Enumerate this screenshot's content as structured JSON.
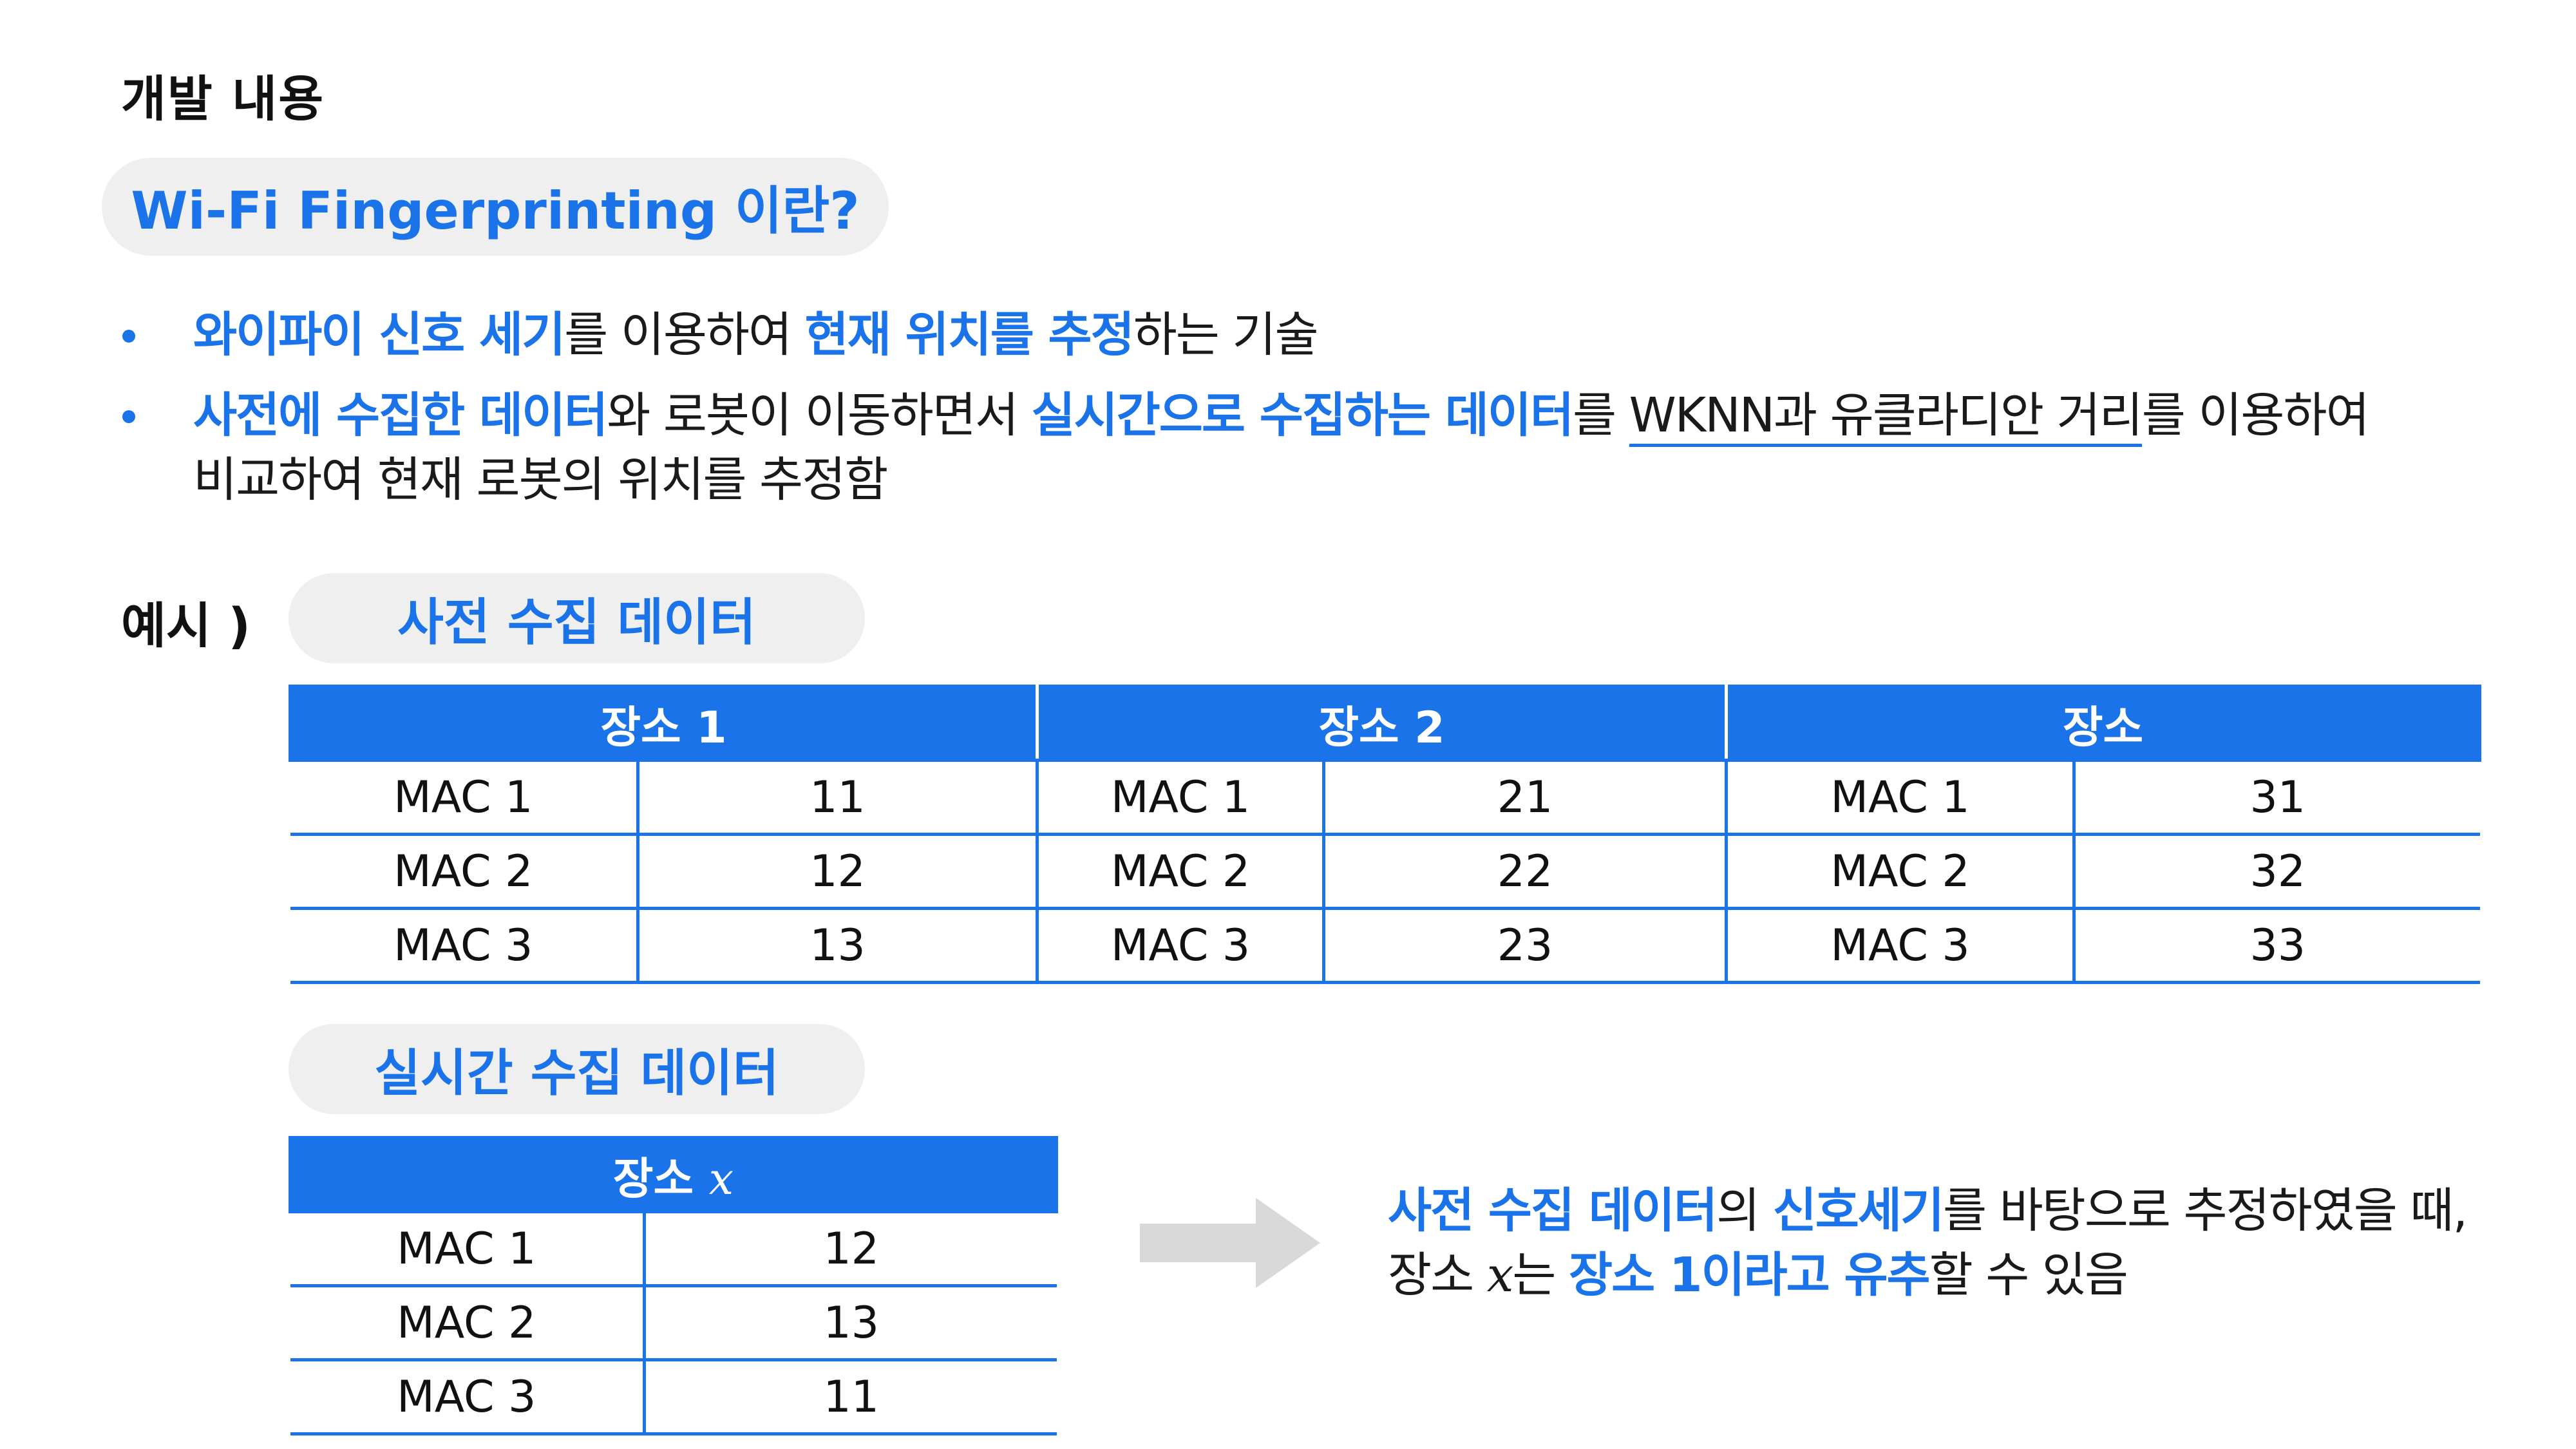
{
  "page_title": "개발 내용",
  "intro_pill": "Wi-Fi Fingerprinting 이란?",
  "bullet1": {
    "hl1": "와이파이 신호 세기",
    "t1": "를 이용하여 ",
    "hl2": "현재 위치를 추정",
    "t2": "하는 기술"
  },
  "bullet2": {
    "hl1": "사전에 수집한 데이터",
    "t1": "와 로봇이 이동하면서 ",
    "hl2": "실시간으로 수집하는 데이터",
    "t2": "를 ",
    "underlined": "WKNN과 유클라디안 거리",
    "t3": "를 이용하여",
    "line2": "비교하여 현재 로봇의 위치를 추정함"
  },
  "example_label": "예시 )",
  "pre_pill": "사전 수집 데이터",
  "rt_pill": "실시간 수집 데이터",
  "pre_table": {
    "headers": [
      "장소 1",
      "장소 2",
      "장소"
    ],
    "rows": [
      [
        "MAC 1",
        "11",
        "MAC 1",
        "21",
        "MAC 1",
        "31"
      ],
      [
        "MAC 2",
        "12",
        "MAC 2",
        "22",
        "MAC 2",
        "32"
      ],
      [
        "MAC 3",
        "13",
        "MAC 3",
        "23",
        "MAC 3",
        "33"
      ]
    ]
  },
  "rt_table": {
    "header": "장소",
    "header_var": "x",
    "rows": [
      [
        "MAC 1",
        "12"
      ],
      [
        "MAC 2",
        "13"
      ],
      [
        "MAC 3",
        "11"
      ]
    ]
  },
  "conclusion": {
    "hl1": "사전 수집 데이터",
    "t1": "의 ",
    "hl2": "신호세기",
    "t2": "를 바탕으로 추정하였을 때,",
    "t3": "장소 ",
    "var": "x",
    "t4": "는 ",
    "hl3": "장소 1이라고 유추",
    "t5": "할 수 있음"
  },
  "colors": {
    "accent": "#1a73e8",
    "pill_bg": "#efefef",
    "arrow": "#d9d9d9"
  },
  "icons": [
    "bullet-dot",
    "arrow-right-icon"
  ]
}
